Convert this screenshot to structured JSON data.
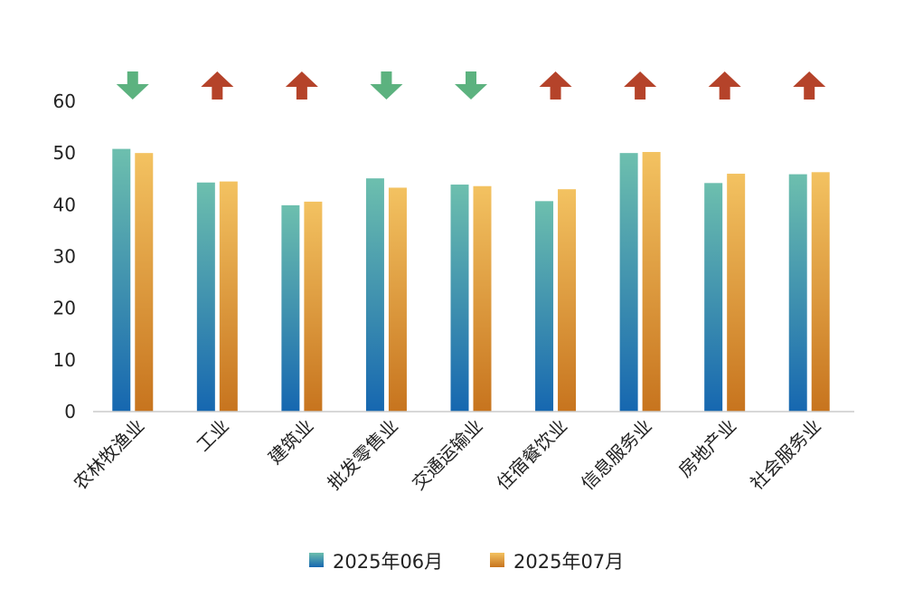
{
  "chart_data": {
    "type": "bar",
    "categories": [
      "农林牧渔业",
      "工业",
      "建筑业",
      "批发零售业",
      "交通运输业",
      "住宿餐饮业",
      "信息服务业",
      "房地产业",
      "社会服务业"
    ],
    "series": [
      {
        "name": "2025年06月",
        "values": [
          50.8,
          44.3,
          39.9,
          45.1,
          43.9,
          40.7,
          50.0,
          44.2,
          45.9
        ],
        "color_top": "#6dbfae",
        "color_bottom": "#1667b0"
      },
      {
        "name": "2025年07月",
        "values": [
          50.0,
          44.5,
          40.6,
          43.3,
          43.6,
          43.0,
          50.2,
          46.0,
          46.3
        ],
        "color_top": "#f3c261",
        "color_bottom": "#c7741e"
      }
    ],
    "trend_indicators": [
      "down",
      "up",
      "up",
      "down",
      "down",
      "up",
      "up",
      "up",
      "up"
    ],
    "trend_colors": {
      "up": "#b5432a",
      "down": "#5cb27f"
    },
    "yticks": [
      "0",
      "10",
      "20",
      "30",
      "40",
      "50",
      "60"
    ],
    "ylim": [
      0,
      60
    ],
    "title": "",
    "xlabel": "",
    "ylabel": "",
    "legend_position": "bottom-center",
    "grid": false
  }
}
